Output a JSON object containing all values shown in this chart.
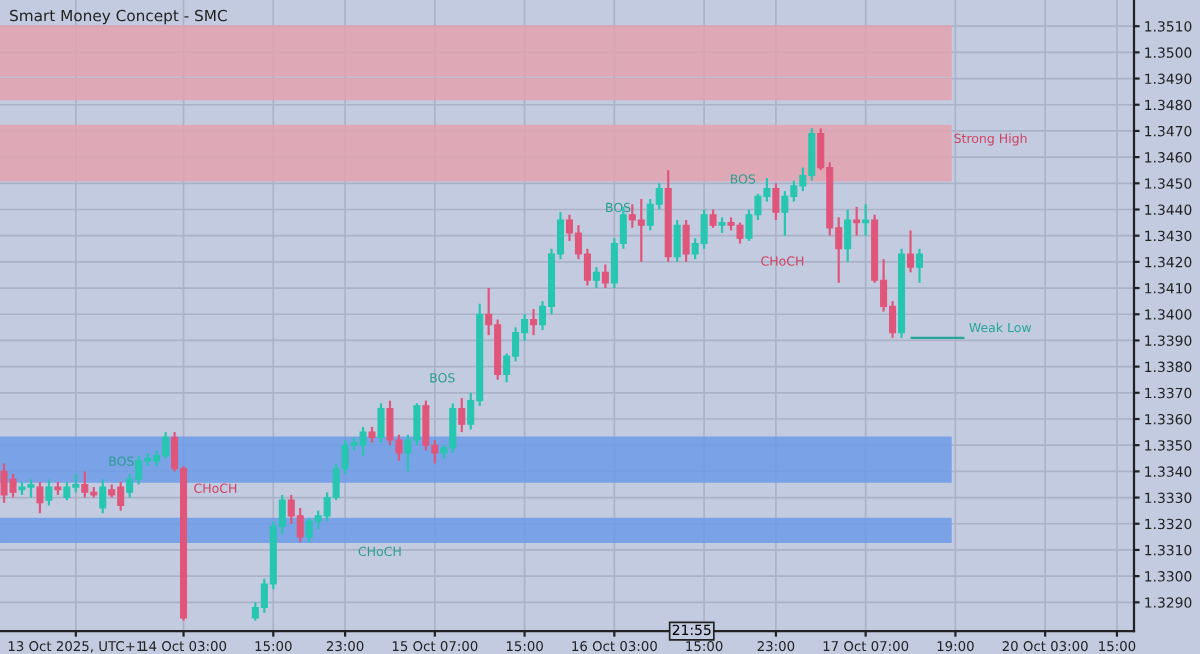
{
  "chart_data": {
    "type": "candlestick",
    "title": "Smart Money Concept - SMC",
    "categories": [
      null,
      null,
      null,
      null,
      null,
      null,
      null,
      null,
      "13 Oct 2025, UTC+1",
      null,
      null,
      null,
      null,
      null,
      null,
      null,
      null,
      null,
      null,
      null,
      "14 Oct 03:00",
      null,
      null,
      null,
      null,
      null,
      null,
      null,
      null,
      null,
      "15:00",
      null,
      null,
      null,
      null,
      null,
      null,
      null,
      "23:00",
      null,
      null,
      null,
      null,
      null,
      null,
      null,
      null,
      null,
      "15 Oct 07:00",
      null,
      null,
      null,
      null,
      null,
      null,
      null,
      null,
      null,
      "15:00",
      null,
      null,
      null,
      null,
      null,
      null,
      null,
      null,
      null,
      "16 Oct 03:00",
      null,
      null,
      null,
      null,
      null,
      null,
      null,
      null,
      null,
      "15:00",
      null,
      null,
      null,
      null,
      null,
      null,
      null,
      "23:00",
      null,
      null,
      null,
      null,
      null,
      null,
      null,
      null,
      null,
      "17 Oct 07:00",
      null,
      null,
      null,
      null,
      null,
      null,
      null,
      null,
      null,
      "19:00",
      null,
      null,
      null,
      null,
      null,
      null,
      null,
      null,
      null,
      "20 Oct 03:00",
      null,
      null,
      null,
      null,
      null,
      null,
      null,
      "15:00",
      null
    ],
    "ohlc": [
      [
        1.334,
        1.3343,
        1.3328,
        1.3331
      ],
      [
        1.3337,
        1.3339,
        1.333,
        1.3332
      ],
      [
        1.3333,
        1.3336,
        1.3331,
        1.3334
      ],
      [
        1.3334,
        1.3337,
        1.333,
        1.3335
      ],
      [
        1.3334,
        1.3336,
        1.3324,
        1.3328
      ],
      [
        1.3329,
        1.3337,
        1.3327,
        1.3334
      ],
      [
        1.3334,
        1.3336,
        1.3331,
        1.3333
      ],
      [
        1.333,
        1.3336,
        1.3329,
        1.3334
      ],
      [
        1.3334,
        1.3339,
        1.3332,
        1.3335
      ],
      [
        1.3335,
        1.334,
        1.333,
        1.3332
      ],
      [
        1.3332,
        1.3334,
        1.333,
        1.3331
      ],
      [
        1.3326,
        1.3337,
        1.3324,
        1.3334
      ],
      [
        1.3333,
        1.3335,
        1.333,
        1.3331
      ],
      [
        1.3334,
        1.3336,
        1.3325,
        1.3327
      ],
      [
        1.3332,
        1.3339,
        1.333,
        1.3337
      ],
      [
        1.3337,
        1.3346,
        1.3335,
        1.3344
      ],
      [
        1.3344,
        1.3347,
        1.3342,
        1.3345
      ],
      [
        1.3344,
        1.3348,
        1.3342,
        1.3346
      ],
      [
        1.3346,
        1.3355,
        1.3345,
        1.3353
      ],
      [
        1.3353,
        1.3355,
        1.334,
        1.3341
      ],
      [
        1.3341,
        1.3342,
        1.3283,
        1.3284
      ],
      null,
      null,
      null,
      null,
      null,
      null,
      null,
      [
        1.3284,
        1.329,
        1.3283,
        1.3288
      ],
      [
        1.3288,
        1.3299,
        1.3286,
        1.3297
      ],
      [
        1.3297,
        1.3321,
        1.3295,
        1.3319
      ],
      [
        1.3319,
        1.3331,
        1.3316,
        1.3329
      ],
      [
        1.3329,
        1.3331,
        1.332,
        1.3323
      ],
      [
        1.3323,
        1.3326,
        1.3313,
        1.3315
      ],
      [
        1.3315,
        1.3322,
        1.3313,
        1.3321
      ],
      [
        1.3321,
        1.3325,
        1.3318,
        1.3323
      ],
      [
        1.3323,
        1.3332,
        1.3321,
        1.333
      ],
      [
        1.333,
        1.3343,
        1.3329,
        1.3341
      ],
      [
        1.3341,
        1.3352,
        1.3339,
        1.335
      ],
      [
        1.335,
        1.3353,
        1.3348,
        1.3351
      ],
      [
        1.335,
        1.3357,
        1.3346,
        1.3355
      ],
      [
        1.3355,
        1.3357,
        1.3351,
        1.3353
      ],
      [
        1.3353,
        1.3366,
        1.3351,
        1.3364
      ],
      [
        1.3364,
        1.3367,
        1.335,
        1.3352
      ],
      [
        1.3352,
        1.3354,
        1.3344,
        1.3347
      ],
      [
        1.3347,
        1.3354,
        1.334,
        1.3352
      ],
      [
        1.3352,
        1.3366,
        1.335,
        1.3365
      ],
      [
        1.3365,
        1.3367,
        1.3348,
        1.335
      ],
      [
        1.335,
        1.3352,
        1.3343,
        1.3347
      ],
      [
        1.3347,
        1.335,
        1.3345,
        1.3349
      ],
      [
        1.3349,
        1.3366,
        1.3347,
        1.3364
      ],
      [
        1.3364,
        1.3368,
        1.3355,
        1.3358
      ],
      [
        1.3358,
        1.337,
        1.3356,
        1.3367
      ],
      [
        1.3367,
        1.3404,
        1.3365,
        1.34
      ],
      [
        1.34,
        1.341,
        1.3392,
        1.3396
      ],
      [
        1.3396,
        1.3398,
        1.3375,
        1.3377
      ],
      [
        1.3377,
        1.3385,
        1.3374,
        1.3384
      ],
      [
        1.3384,
        1.3395,
        1.3382,
        1.3393
      ],
      [
        1.3393,
        1.34,
        1.339,
        1.3398
      ],
      [
        1.3398,
        1.3402,
        1.3392,
        1.3396
      ],
      [
        1.3396,
        1.3405,
        1.3394,
        1.3403
      ],
      [
        1.3403,
        1.3425,
        1.34,
        1.3423
      ],
      [
        1.3423,
        1.3439,
        1.3421,
        1.3436
      ],
      [
        1.3436,
        1.3438,
        1.3428,
        1.3431
      ],
      [
        1.3431,
        1.3434,
        1.3421,
        1.3423
      ],
      [
        1.3423,
        1.3425,
        1.3411,
        1.3413
      ],
      [
        1.3413,
        1.3418,
        1.341,
        1.3416
      ],
      [
        1.3416,
        1.3419,
        1.341,
        1.3412
      ],
      [
        1.3412,
        1.3429,
        1.341,
        1.3427
      ],
      [
        1.3427,
        1.3441,
        1.3425,
        1.3438
      ],
      [
        1.3438,
        1.3442,
        1.3433,
        1.3436
      ],
      [
        1.3436,
        1.3444,
        1.342,
        1.3434
      ],
      [
        1.3434,
        1.3444,
        1.3432,
        1.3442
      ],
      [
        1.3442,
        1.345,
        1.344,
        1.3448
      ],
      [
        1.3448,
        1.3455,
        1.342,
        1.3422
      ],
      [
        1.3422,
        1.3436,
        1.342,
        1.3434
      ],
      [
        1.3434,
        1.3436,
        1.342,
        1.3423
      ],
      [
        1.3423,
        1.3429,
        1.3421,
        1.3427
      ],
      [
        1.3427,
        1.344,
        1.3425,
        1.3438
      ],
      [
        1.3438,
        1.344,
        1.3433,
        1.3434
      ],
      [
        1.3434,
        1.3437,
        1.3431,
        1.3435
      ],
      [
        1.3435,
        1.3437,
        1.3432,
        1.3434
      ],
      [
        1.3434,
        1.3435,
        1.3427,
        1.3429
      ],
      [
        1.3429,
        1.344,
        1.3428,
        1.3438
      ],
      [
        1.3438,
        1.3446,
        1.3436,
        1.3445
      ],
      [
        1.3445,
        1.3452,
        1.3443,
        1.3448
      ],
      [
        1.3448,
        1.345,
        1.3436,
        1.3439
      ],
      [
        1.3439,
        1.3447,
        1.343,
        1.3445
      ],
      [
        1.3445,
        1.3451,
        1.3443,
        1.3449
      ],
      [
        1.3449,
        1.3456,
        1.3447,
        1.3453
      ],
      [
        1.3453,
        1.3471,
        1.3451,
        1.3469
      ],
      [
        1.3469,
        1.3471,
        1.3455,
        1.3456
      ],
      [
        1.3456,
        1.3458,
        1.343,
        1.3433
      ],
      [
        1.3433,
        1.3437,
        1.3412,
        1.3425
      ],
      [
        1.3425,
        1.344,
        1.342,
        1.3436
      ],
      [
        1.3436,
        1.3441,
        1.343,
        1.3435
      ],
      [
        1.3435,
        1.3442,
        1.343,
        1.3436
      ],
      [
        1.3436,
        1.3438,
        1.3412,
        1.3413
      ],
      [
        1.3413,
        1.3421,
        1.3401,
        1.3403
      ],
      [
        1.3403,
        1.3405,
        1.3391,
        1.3393
      ],
      [
        1.3393,
        1.3425,
        1.3391,
        1.3423
      ],
      [
        1.3423,
        1.3432,
        1.3416,
        1.3418
      ],
      [
        1.3418,
        1.3425,
        1.3412,
        1.3423
      ],
      null,
      null,
      null,
      null,
      null,
      null,
      null,
      null,
      null,
      null,
      null,
      null,
      null,
      null,
      null,
      null,
      null,
      null,
      null,
      null,
      null,
      null,
      null
    ],
    "colors": [
      "#e0567a",
      "#e0567a",
      "#26c6b0",
      "#26c6b0",
      "#e0567a",
      "#26c6b0",
      "#e0567a",
      "#26c6b0",
      "#26c6b0",
      "#e0567a",
      "#e0567a",
      "#26c6b0",
      "#e0567a",
      "#e0567a",
      "#26c6b0",
      "#26c6b0",
      "#26c6b0",
      "#26c6b0",
      "#26c6b0",
      "#e0567a",
      "#e0567a",
      null,
      null,
      null,
      null,
      null,
      null,
      null,
      "#26c6b0",
      "#26c6b0",
      "#26c6b0",
      "#26c6b0",
      "#e0567a",
      "#e0567a",
      "#26c6b0",
      "#26c6b0",
      "#26c6b0",
      "#26c6b0",
      "#26c6b0",
      "#26c6b0",
      "#26c6b0",
      "#e0567a",
      "#26c6b0",
      "#e0567a",
      "#e0567a",
      "#26c6b0",
      "#26c6b0",
      "#e0567a",
      "#e0567a",
      "#26c6b0",
      "#26c6b0",
      "#e0567a",
      "#26c6b0",
      "#26c6b0",
      "#e0567a",
      "#e0567a",
      "#26c6b0",
      "#26c6b0",
      "#26c6b0",
      "#e0567a",
      "#26c6b0",
      "#26c6b0",
      "#26c6b0",
      "#e0567a",
      "#e0567a",
      "#e0567a",
      "#26c6b0",
      "#e0567a",
      "#26c6b0",
      "#26c6b0",
      "#e0567a",
      "#e0567a",
      "#26c6b0",
      "#26c6b0",
      "#e0567a",
      "#26c6b0",
      "#e0567a",
      "#26c6b0",
      "#26c6b0",
      "#e0567a",
      "#26c6b0",
      "#e0567a",
      "#e0567a",
      "#26c6b0",
      "#26c6b0",
      "#26c6b0",
      "#e0567a",
      "#26c6b0",
      "#26c6b0",
      "#26c6b0",
      "#26c6b0",
      "#e0567a",
      "#e0567a",
      "#e0567a",
      "#26c6b0",
      "#e0567a",
      "#26c6b0",
      "#e0567a",
      "#e0567a",
      "#e0567a",
      "#26c6b0",
      "#e0567a",
      "#26c6b0",
      null,
      null,
      null,
      null,
      null,
      null,
      null,
      null,
      null,
      null,
      null,
      null,
      null,
      null,
      null,
      null,
      null,
      null,
      null,
      null,
      null,
      null,
      null
    ],
    "ylim": [
      1.3279,
      1.352
    ],
    "yticks": [
      {
        "value": 1.329,
        "label": "1.3290"
      },
      {
        "value": 1.33,
        "label": "1.3300"
      },
      {
        "value": 1.331,
        "label": "1.3310"
      },
      {
        "value": 1.332,
        "label": "1.3320"
      },
      {
        "value": 1.333,
        "label": "1.3330"
      },
      {
        "value": 1.334,
        "label": "1.3340"
      },
      {
        "value": 1.335,
        "label": "1.3350"
      },
      {
        "value": 1.336,
        "label": "1.3360"
      },
      {
        "value": 1.337,
        "label": "1.3370"
      },
      {
        "value": 1.338,
        "label": "1.3380"
      },
      {
        "value": 1.339,
        "label": "1.3390"
      },
      {
        "value": 1.34,
        "label": "1.3400"
      },
      {
        "value": 1.341,
        "label": "1.3410"
      },
      {
        "value": 1.342,
        "label": "1.3420"
      },
      {
        "value": 1.343,
        "label": "1.3430"
      },
      {
        "value": 1.344,
        "label": "1.3440"
      },
      {
        "value": 1.345,
        "label": "1.3450"
      },
      {
        "value": 1.346,
        "label": "1.3460"
      },
      {
        "value": 1.347,
        "label": "1.3470"
      },
      {
        "value": 1.348,
        "label": "1.3480"
      },
      {
        "value": 1.349,
        "label": "1.3490"
      },
      {
        "value": 1.35,
        "label": "1.3500"
      },
      {
        "value": 1.351,
        "label": "1.3510"
      }
    ],
    "bands": [
      {
        "axis": "y",
        "from": 1.3491,
        "to": 1.351,
        "color": "#e3a3b0"
      },
      {
        "axis": "y",
        "from": 1.3482,
        "to": 1.349,
        "color": "#e3a3b0"
      },
      {
        "axis": "y",
        "from": 1.3451,
        "to": 1.3472,
        "label": "Strong High",
        "color": "#e3a3b0"
      },
      {
        "axis": "y",
        "from": 1.3336,
        "to": 1.3353,
        "color": "#6e9be8"
      },
      {
        "axis": "y",
        "from": 1.3313,
        "to": 1.3322,
        "color": "#6e9be8"
      }
    ],
    "ref_lines": [
      {
        "axis": "y",
        "value": 1.3391,
        "label": "Weak Low",
        "color": "#26a69a"
      }
    ],
    "annotations": [
      "BOS",
      "CHoCH",
      "CHoCH",
      "BOS",
      "BOS",
      "BOS",
      "CHoCH",
      "21:55"
    ],
    "grid": true
  }
}
